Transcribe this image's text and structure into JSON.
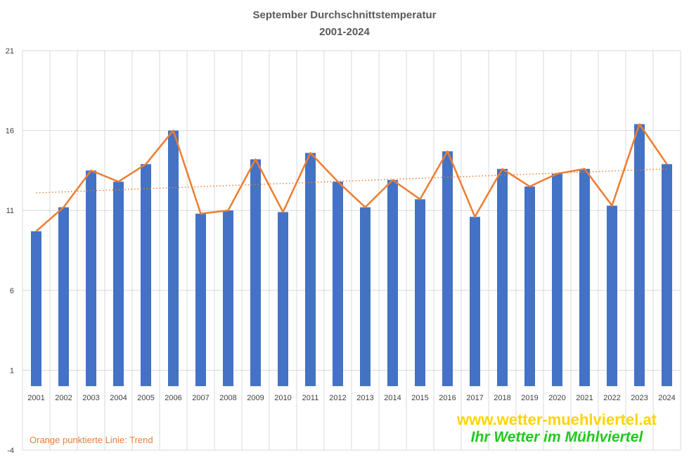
{
  "chart_data": {
    "type": "bar",
    "title": "September Durchschnittstemperatur",
    "subtitle": "2001-2024",
    "categories": [
      "2001",
      "2002",
      "2003",
      "2004",
      "2005",
      "2006",
      "2007",
      "2008",
      "2009",
      "2010",
      "2011",
      "2012",
      "2013",
      "2014",
      "2015",
      "2016",
      "2017",
      "2018",
      "2019",
      "2020",
      "2021",
      "2022",
      "2023",
      "2024"
    ],
    "values": [
      9.7,
      11.2,
      13.5,
      12.8,
      13.9,
      16.0,
      10.8,
      11.0,
      14.2,
      10.9,
      14.6,
      12.8,
      11.2,
      12.9,
      11.7,
      14.7,
      10.6,
      13.6,
      12.5,
      13.3,
      13.6,
      11.3,
      16.4,
      13.9
    ],
    "line_overlay": true,
    "trend": {
      "start": 12.1,
      "end": 13.6,
      "style": "dotted"
    },
    "ylim": [
      -4,
      21
    ],
    "yticks": [
      "21",
      "16",
      "11",
      "6",
      "1",
      "-4"
    ],
    "grid": true,
    "colors": {
      "bar": "#4472C4",
      "line": "#ED7D31",
      "trend": "#ED7D31"
    },
    "annotation": "Orange punktierte Linie: Trend",
    "watermark": {
      "url": "www.wetter-muehlviertel.at",
      "slogan": "Ihr Wetter im Mühlviertel"
    }
  }
}
